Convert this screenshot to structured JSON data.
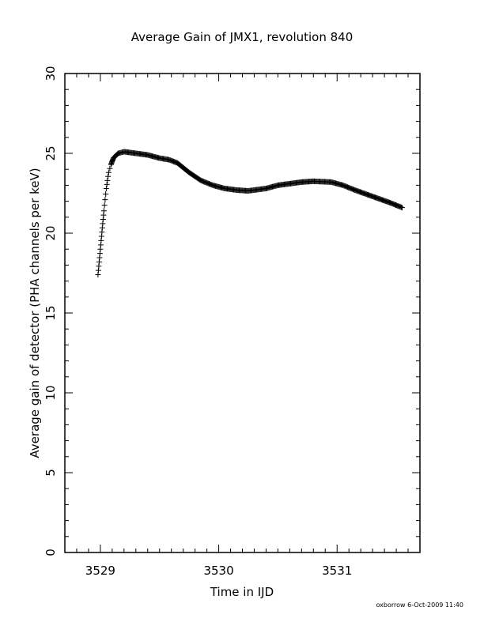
{
  "chart_data": {
    "type": "scatter",
    "title": "Average Gain of JMX1, revolution 840",
    "xlabel": "Time in IJD",
    "ylabel": "Average gain of detector (PHA channels per keV)",
    "xlim": [
      3528.7,
      3531.7
    ],
    "ylim": [
      0,
      30
    ],
    "x_ticks": [
      3529,
      3530,
      3531
    ],
    "y_ticks": [
      0,
      5,
      10,
      15,
      20,
      25,
      30
    ],
    "grid": false,
    "marker": "plus",
    "series": [
      {
        "anchors": [
          [
            3528.98,
            17.4
          ],
          [
            3528.99,
            18.2
          ],
          [
            3529.0,
            19.0
          ],
          [
            3529.01,
            19.8
          ],
          [
            3529.02,
            20.6
          ],
          [
            3529.03,
            21.4
          ],
          [
            3529.04,
            22.1
          ],
          [
            3529.05,
            22.8
          ],
          [
            3529.06,
            23.3
          ],
          [
            3529.07,
            23.8
          ],
          [
            3529.09,
            24.3
          ],
          [
            3529.11,
            24.7
          ],
          [
            3529.15,
            25.0
          ],
          [
            3529.2,
            25.1
          ],
          [
            3529.3,
            25.0
          ],
          [
            3529.4,
            24.9
          ],
          [
            3529.5,
            24.7
          ],
          [
            3529.58,
            24.6
          ],
          [
            3529.65,
            24.4
          ],
          [
            3529.75,
            23.8
          ],
          [
            3529.85,
            23.3
          ],
          [
            3529.95,
            23.0
          ],
          [
            3530.05,
            22.8
          ],
          [
            3530.15,
            22.7
          ],
          [
            3530.25,
            22.65
          ],
          [
            3530.4,
            22.8
          ],
          [
            3530.5,
            23.0
          ],
          [
            3530.6,
            23.1
          ],
          [
            3530.7,
            23.2
          ],
          [
            3530.8,
            23.25
          ],
          [
            3530.95,
            23.2
          ],
          [
            3531.05,
            23.0
          ],
          [
            3531.15,
            22.7
          ],
          [
            3531.3,
            22.3
          ],
          [
            3531.45,
            21.9
          ],
          [
            3531.55,
            21.6
          ]
        ]
      }
    ]
  },
  "footer": {
    "credit": "oxborrow   6-Oct-2009 11:40"
  }
}
